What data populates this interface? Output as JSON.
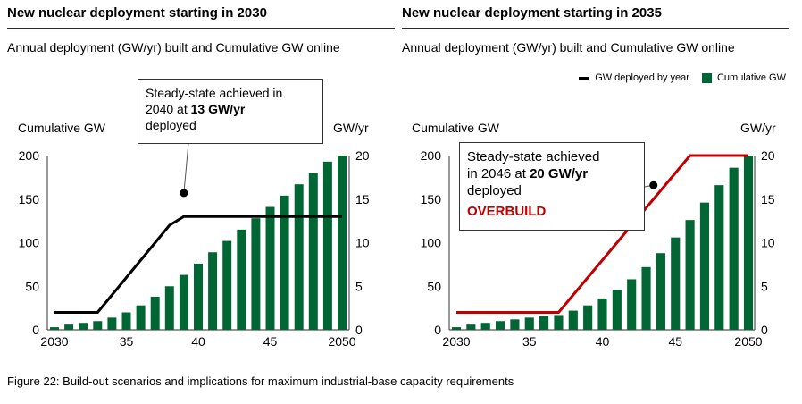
{
  "caption": "Figure 22: Build-out scenarios and implications for maximum industrial-base capacity requirements",
  "legend": {
    "line_label": "GW deployed by year",
    "bar_label": "Cumulative GW"
  },
  "colors": {
    "bar": "#006633",
    "line_left": "#000000",
    "line_right": "#c00000",
    "overbuild": "#c00000"
  },
  "chart_data": [
    {
      "type": "bar",
      "title": "New nuclear deployment starting in 2030",
      "subtitle": "Annual deployment (GW/yr) built and Cumulative GW online",
      "ylabel_left": "Cumulative GW",
      "ylabel_right": "GW/yr",
      "ylim_left": [
        0,
        200
      ],
      "ylim_right": [
        0,
        20
      ],
      "yticks_left": [
        "0",
        "50",
        "100",
        "150",
        "200"
      ],
      "yticks_right": [
        "0",
        "5",
        "10",
        "15",
        "20"
      ],
      "xticks": [
        "2030",
        "35",
        "40",
        "45",
        "2050"
      ],
      "x": [
        2030,
        2031,
        2032,
        2033,
        2034,
        2035,
        2036,
        2037,
        2038,
        2039,
        2040,
        2041,
        2042,
        2043,
        2044,
        2045,
        2046,
        2047,
        2048,
        2049,
        2050
      ],
      "series": [
        {
          "name": "Cumulative GW",
          "type": "bar",
          "axis": "left",
          "values": [
            3,
            6,
            8,
            10,
            14,
            20,
            28,
            38,
            50,
            63,
            76,
            89,
            102,
            115,
            128,
            141,
            154,
            167,
            180,
            193,
            200
          ]
        },
        {
          "name": "GW deployed by year",
          "type": "line",
          "axis": "right",
          "values": [
            2,
            2,
            2,
            2,
            4,
            6,
            8,
            10,
            12,
            13,
            13,
            13,
            13,
            13,
            13,
            13,
            13,
            13,
            13,
            13,
            13
          ]
        }
      ],
      "annotation": {
        "line1": "Steady-state achieved in",
        "line2_pre": "2040 at ",
        "line2_bold": "13 GW/yr",
        "line3": "deployed",
        "point": [
          2039,
          15.7
        ]
      }
    },
    {
      "type": "bar",
      "title": "New nuclear deployment starting in 2035",
      "subtitle": "Annual deployment (GW/yr) built and Cumulative GW online",
      "ylabel_left": "Cumulative GW",
      "ylabel_right": "GW/yr",
      "ylim_left": [
        0,
        200
      ],
      "ylim_right": [
        0,
        20
      ],
      "yticks_left": [
        "0",
        "50",
        "100",
        "150",
        "200"
      ],
      "yticks_right": [
        "0",
        "5",
        "10",
        "15",
        "20"
      ],
      "xticks": [
        "2030",
        "35",
        "40",
        "45",
        "2050"
      ],
      "x": [
        2030,
        2031,
        2032,
        2033,
        2034,
        2035,
        2036,
        2037,
        2038,
        2039,
        2040,
        2041,
        2042,
        2043,
        2044,
        2045,
        2046,
        2047,
        2048,
        2049,
        2050
      ],
      "series": [
        {
          "name": "Cumulative GW",
          "type": "bar",
          "axis": "left",
          "values": [
            3,
            6,
            8,
            10,
            12,
            14,
            16,
            17,
            22,
            28,
            36,
            46,
            58,
            72,
            88,
            106,
            126,
            146,
            166,
            186,
            200
          ]
        },
        {
          "name": "GW deployed by year",
          "type": "line",
          "axis": "right",
          "values": [
            2,
            2,
            2,
            2,
            2,
            2,
            2,
            2,
            4,
            6,
            8,
            10,
            12,
            14,
            16,
            18,
            20,
            20,
            20,
            20,
            20
          ]
        }
      ],
      "annotation": {
        "line1": "Steady-state achieved",
        "line2_pre": "in 2046 at ",
        "line2_bold": "20 GW/yr",
        "line3": "deployed",
        "warning": "OVERBUILD",
        "point": [
          2043.5,
          16.6
        ]
      }
    }
  ]
}
